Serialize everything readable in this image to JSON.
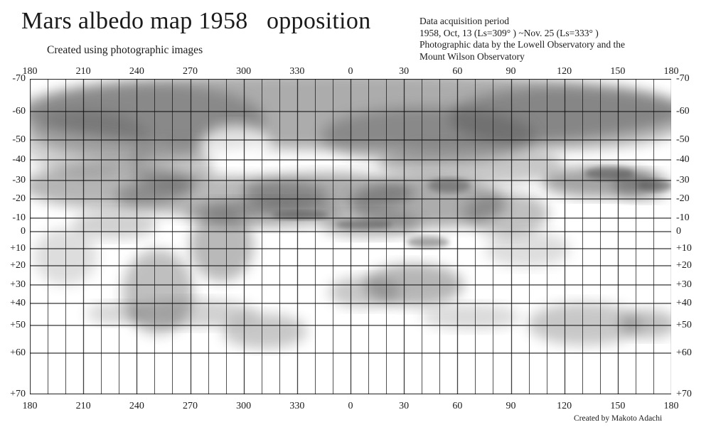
{
  "title": "Mars albedo map 1958   opposition",
  "subtitle": "Created using photographic images",
  "info_lines": [
    "Data acquisition period",
    "1958, Oct, 13 (Ls=309° ) ~Nov. 25 (Ls=333° )",
    "Photographic data by the Lowell Observatory and the",
    "Mount Wilson Observatory"
  ],
  "credit": "Created by Makoto Adachi",
  "map": {
    "longitude_labels": [
      "180",
      "210",
      "240",
      "270",
      "300",
      "330",
      "0",
      "30",
      "60",
      "90",
      "120",
      "150",
      "180"
    ],
    "latitude_labels": [
      "-70",
      "-60",
      "-50",
      "-40",
      "-30",
      "-20",
      "-10",
      "0",
      "+10",
      "+20",
      "+30",
      "+40",
      "+50",
      "+60",
      "+70"
    ],
    "latitude_values": [
      -70,
      -60,
      -50,
      -40,
      -30,
      -20,
      -10,
      0,
      10,
      20,
      30,
      40,
      50,
      60,
      70
    ],
    "shading_color": "#4a4a4a",
    "grid_color": "#111111"
  }
}
